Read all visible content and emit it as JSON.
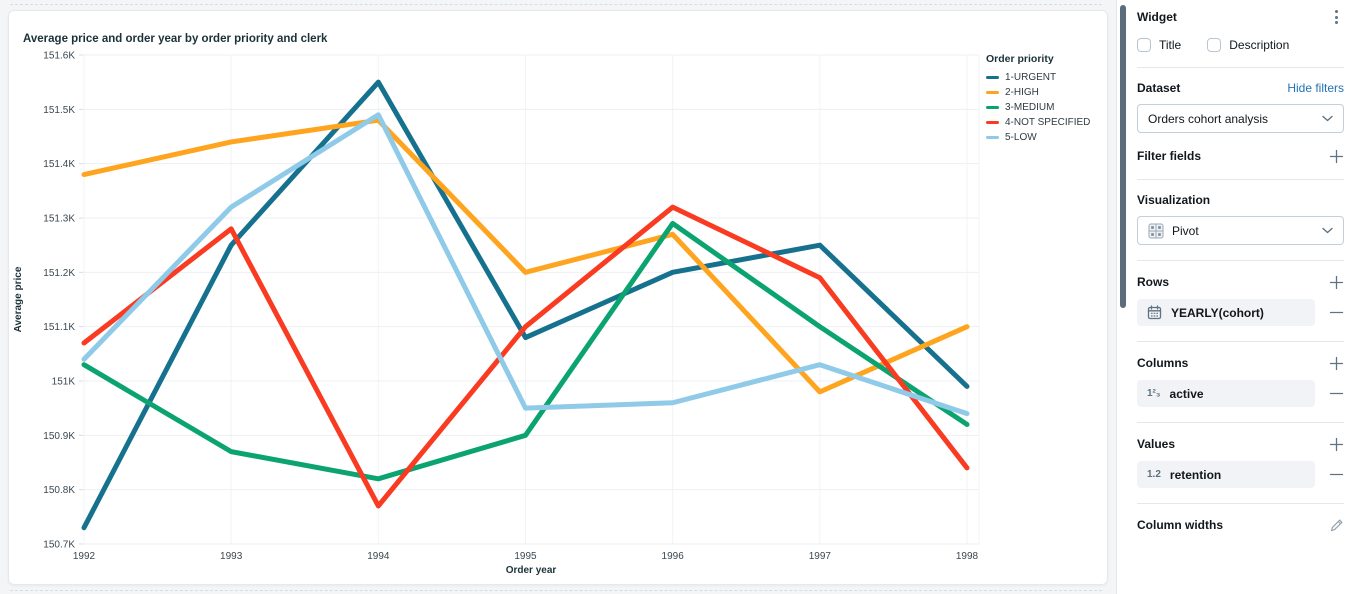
{
  "chart_data": {
    "type": "line",
    "title": "Average price and order year by order priority and clerk",
    "xlabel": "Order year",
    "ylabel": "Average price",
    "legend_title": "Order priority",
    "legend_position": "right",
    "grid": true,
    "x": [
      "1992",
      "1993",
      "1994",
      "1995",
      "1996",
      "1997",
      "1998"
    ],
    "ylim": [
      150700,
      151600
    ],
    "y_ticks": [
      {
        "value": 151600,
        "label": "151.6K"
      },
      {
        "value": 151500,
        "label": "151.5K"
      },
      {
        "value": 151400,
        "label": "151.4K"
      },
      {
        "value": 151300,
        "label": "151.3K"
      },
      {
        "value": 151200,
        "label": "151.2K"
      },
      {
        "value": 151100,
        "label": "151.1K"
      },
      {
        "value": 151000,
        "label": "151K"
      },
      {
        "value": 150900,
        "label": "150.9K"
      },
      {
        "value": 150800,
        "label": "150.8K"
      },
      {
        "value": 150700,
        "label": "150.7K"
      }
    ],
    "series": [
      {
        "name": "1-URGENT",
        "color": "#16718E",
        "values": [
          150730,
          151250,
          151550,
          151080,
          151200,
          151250,
          150990
        ]
      },
      {
        "name": "2-HIGH",
        "color": "#FFA41F",
        "values": [
          151380,
          151440,
          151480,
          151200,
          151270,
          150980,
          151100
        ]
      },
      {
        "name": "3-MEDIUM",
        "color": "#0BA471",
        "values": [
          151030,
          150870,
          150820,
          150900,
          151290,
          151100,
          150920
        ]
      },
      {
        "name": "4-NOT SPECIFIED",
        "color": "#F93B22",
        "values": [
          151070,
          151280,
          150770,
          151100,
          151320,
          151190,
          150840
        ]
      },
      {
        "name": "5-LOW",
        "color": "#8FCAE8",
        "values": [
          151040,
          151320,
          151490,
          150950,
          150960,
          151030,
          150940
        ]
      }
    ]
  },
  "panel": {
    "widget_header": "Widget",
    "title_checkbox": {
      "label": "Title",
      "checked": false
    },
    "description_checkbox": {
      "label": "Description",
      "checked": false
    },
    "dataset_header": "Dataset",
    "hide_filters_link": "Hide filters",
    "dataset_select": {
      "value": "Orders cohort analysis"
    },
    "filter_fields_header": "Filter fields",
    "visualization_header": "Visualization",
    "visualization_select": {
      "value": "Pivot"
    },
    "rows_header": "Rows",
    "rows_field": {
      "label": "YEARLY(cohort)"
    },
    "columns_header": "Columns",
    "columns_field": {
      "label": "active"
    },
    "values_header": "Values",
    "values_field": {
      "label": "retention"
    },
    "column_widths_header": "Column widths"
  },
  "icons": {
    "integer_type": "1²₃",
    "decimal_type": "1.2"
  },
  "colors": {
    "accent_link": "#2272B4",
    "icon_gray": "#5F7281",
    "field_bg": "#F1F3F6",
    "scrollbar": "#5D6C7A"
  }
}
